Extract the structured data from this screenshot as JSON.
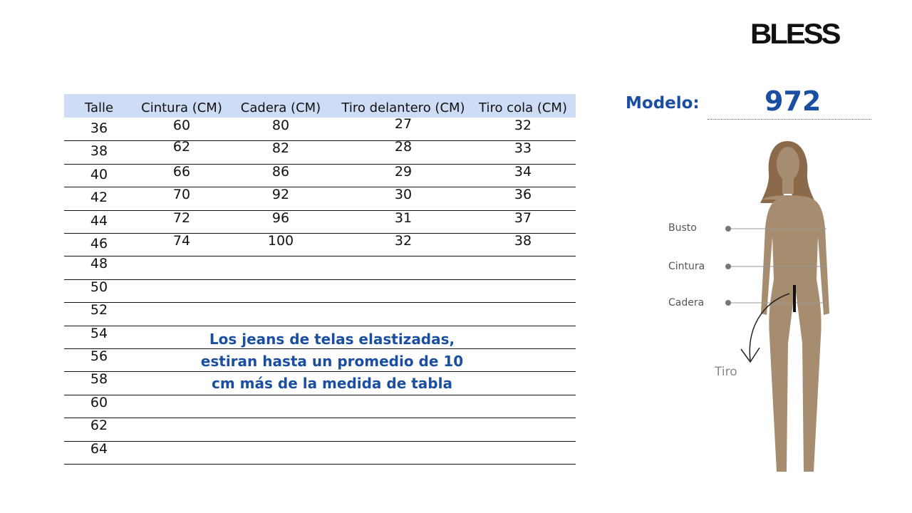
{
  "brand": "BLESS",
  "model": {
    "label": "Modelo:",
    "number": "972"
  },
  "table": {
    "header": [
      "Talle",
      "Cintura (CM)",
      "Cadera (CM)",
      "Tiro delantero (CM)",
      "Tiro cola (CM)"
    ],
    "rows": [
      [
        36,
        60,
        80,
        27,
        32
      ],
      [
        38,
        62,
        82,
        28,
        33
      ],
      [
        40,
        66,
        86,
        29,
        34
      ],
      [
        42,
        70,
        92,
        30,
        36
      ],
      [
        44,
        72,
        96,
        31,
        37
      ],
      [
        46,
        74,
        100,
        32,
        38
      ],
      [
        48
      ],
      [
        50
      ],
      [
        52
      ],
      [
        54
      ],
      [
        56
      ],
      [
        58
      ],
      [
        60
      ],
      [
        62
      ],
      [
        64
      ]
    ]
  },
  "note": [
    "Los jeans de telas elastizadas,",
    "estiran hasta un promedio de 10",
    "cm más de la medida de tabla"
  ],
  "figure": {
    "labels": [
      "Busto",
      "Cintura",
      "Cadera"
    ],
    "tiro": "Tiro"
  }
}
